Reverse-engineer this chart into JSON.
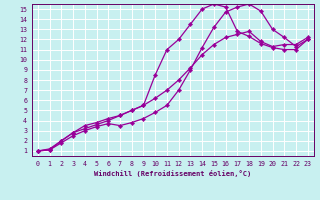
{
  "title": "",
  "xlabel": "Windchill (Refroidissement éolien,°C)",
  "ylabel": "",
  "bg_color": "#c8f0f0",
  "line_color": "#990099",
  "grid_color": "#ffffff",
  "axis_color": "#660066",
  "xlim": [
    -0.5,
    23.5
  ],
  "ylim": [
    0.5,
    15.5
  ],
  "xticks": [
    0,
    1,
    2,
    3,
    4,
    5,
    6,
    7,
    8,
    9,
    10,
    11,
    12,
    13,
    14,
    15,
    16,
    17,
    18,
    19,
    20,
    21,
    22,
    23
  ],
  "yticks": [
    1,
    2,
    3,
    4,
    5,
    6,
    7,
    8,
    9,
    10,
    11,
    12,
    13,
    14,
    15
  ],
  "curve1_x": [
    0,
    1,
    2,
    3,
    4,
    5,
    6,
    7,
    8,
    9,
    10,
    11,
    12,
    13,
    14,
    15,
    16,
    17,
    18,
    19,
    20,
    21,
    22,
    23
  ],
  "curve1_y": [
    1,
    1.1,
    1.8,
    2.5,
    3.0,
    3.4,
    3.7,
    3.5,
    3.8,
    4.2,
    4.8,
    5.5,
    7.0,
    9.0,
    11.2,
    13.2,
    14.7,
    15.2,
    15.5,
    14.8,
    13.0,
    12.2,
    11.3,
    12.0
  ],
  "curve2_x": [
    0,
    1,
    2,
    3,
    4,
    5,
    6,
    7,
    8,
    9,
    10,
    11,
    12,
    13,
    14,
    15,
    16,
    17,
    18,
    19,
    20,
    21,
    22,
    23
  ],
  "curve2_y": [
    1,
    1.1,
    2.0,
    2.8,
    3.5,
    3.8,
    4.2,
    4.5,
    5.0,
    5.5,
    8.5,
    11.0,
    12.0,
    13.5,
    15.0,
    15.5,
    15.2,
    12.8,
    12.3,
    11.6,
    11.2,
    11.0,
    11.0,
    12.0
  ],
  "curve3_x": [
    0,
    1,
    2,
    3,
    4,
    5,
    6,
    7,
    8,
    9,
    10,
    11,
    12,
    13,
    14,
    15,
    16,
    17,
    18,
    19,
    20,
    21,
    22,
    23
  ],
  "curve3_y": [
    1,
    1.2,
    2.0,
    2.8,
    3.2,
    3.6,
    4.0,
    4.5,
    5.0,
    5.5,
    6.2,
    7.0,
    8.0,
    9.2,
    10.5,
    11.5,
    12.2,
    12.5,
    12.8,
    11.8,
    11.3,
    11.5,
    11.5,
    12.2
  ],
  "marker_size": 2.2,
  "line_width": 0.9,
  "xlabel_fontsize": 5.0,
  "tick_fontsize": 4.8
}
